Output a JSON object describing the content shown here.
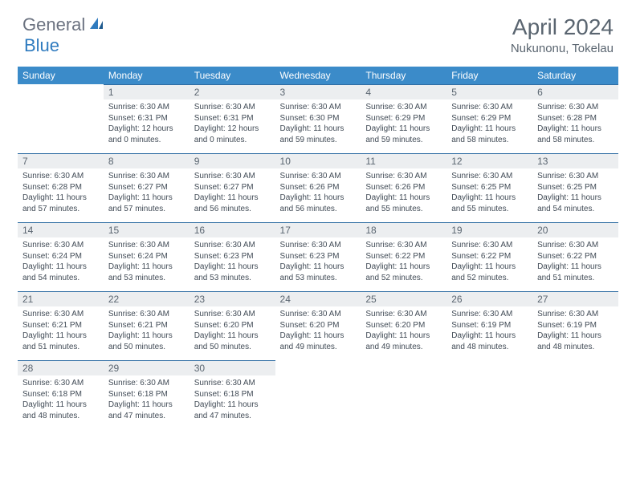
{
  "brand": {
    "text_general": "General",
    "text_blue": "Blue",
    "accent": "#2f7bbf"
  },
  "title": "April 2024",
  "location": "Nukunonu, Tokelau",
  "header_bg": "#3b8bc9",
  "header_text": "#ffffff",
  "daynum_bg": "#eceef0",
  "border_color": "#2f6da3",
  "text_color": "#414b56",
  "weekdays": [
    "Sunday",
    "Monday",
    "Tuesday",
    "Wednesday",
    "Thursday",
    "Friday",
    "Saturday"
  ],
  "first_day_index": 1,
  "days": [
    {
      "n": 1,
      "sunrise": "6:30 AM",
      "sunset": "6:31 PM",
      "daylight": "12 hours and 0 minutes."
    },
    {
      "n": 2,
      "sunrise": "6:30 AM",
      "sunset": "6:31 PM",
      "daylight": "12 hours and 0 minutes."
    },
    {
      "n": 3,
      "sunrise": "6:30 AM",
      "sunset": "6:30 PM",
      "daylight": "11 hours and 59 minutes."
    },
    {
      "n": 4,
      "sunrise": "6:30 AM",
      "sunset": "6:29 PM",
      "daylight": "11 hours and 59 minutes."
    },
    {
      "n": 5,
      "sunrise": "6:30 AM",
      "sunset": "6:29 PM",
      "daylight": "11 hours and 58 minutes."
    },
    {
      "n": 6,
      "sunrise": "6:30 AM",
      "sunset": "6:28 PM",
      "daylight": "11 hours and 58 minutes."
    },
    {
      "n": 7,
      "sunrise": "6:30 AM",
      "sunset": "6:28 PM",
      "daylight": "11 hours and 57 minutes."
    },
    {
      "n": 8,
      "sunrise": "6:30 AM",
      "sunset": "6:27 PM",
      "daylight": "11 hours and 57 minutes."
    },
    {
      "n": 9,
      "sunrise": "6:30 AM",
      "sunset": "6:27 PM",
      "daylight": "11 hours and 56 minutes."
    },
    {
      "n": 10,
      "sunrise": "6:30 AM",
      "sunset": "6:26 PM",
      "daylight": "11 hours and 56 minutes."
    },
    {
      "n": 11,
      "sunrise": "6:30 AM",
      "sunset": "6:26 PM",
      "daylight": "11 hours and 55 minutes."
    },
    {
      "n": 12,
      "sunrise": "6:30 AM",
      "sunset": "6:25 PM",
      "daylight": "11 hours and 55 minutes."
    },
    {
      "n": 13,
      "sunrise": "6:30 AM",
      "sunset": "6:25 PM",
      "daylight": "11 hours and 54 minutes."
    },
    {
      "n": 14,
      "sunrise": "6:30 AM",
      "sunset": "6:24 PM",
      "daylight": "11 hours and 54 minutes."
    },
    {
      "n": 15,
      "sunrise": "6:30 AM",
      "sunset": "6:24 PM",
      "daylight": "11 hours and 53 minutes."
    },
    {
      "n": 16,
      "sunrise": "6:30 AM",
      "sunset": "6:23 PM",
      "daylight": "11 hours and 53 minutes."
    },
    {
      "n": 17,
      "sunrise": "6:30 AM",
      "sunset": "6:23 PM",
      "daylight": "11 hours and 53 minutes."
    },
    {
      "n": 18,
      "sunrise": "6:30 AM",
      "sunset": "6:22 PM",
      "daylight": "11 hours and 52 minutes."
    },
    {
      "n": 19,
      "sunrise": "6:30 AM",
      "sunset": "6:22 PM",
      "daylight": "11 hours and 52 minutes."
    },
    {
      "n": 20,
      "sunrise": "6:30 AM",
      "sunset": "6:22 PM",
      "daylight": "11 hours and 51 minutes."
    },
    {
      "n": 21,
      "sunrise": "6:30 AM",
      "sunset": "6:21 PM",
      "daylight": "11 hours and 51 minutes."
    },
    {
      "n": 22,
      "sunrise": "6:30 AM",
      "sunset": "6:21 PM",
      "daylight": "11 hours and 50 minutes."
    },
    {
      "n": 23,
      "sunrise": "6:30 AM",
      "sunset": "6:20 PM",
      "daylight": "11 hours and 50 minutes."
    },
    {
      "n": 24,
      "sunrise": "6:30 AM",
      "sunset": "6:20 PM",
      "daylight": "11 hours and 49 minutes."
    },
    {
      "n": 25,
      "sunrise": "6:30 AM",
      "sunset": "6:20 PM",
      "daylight": "11 hours and 49 minutes."
    },
    {
      "n": 26,
      "sunrise": "6:30 AM",
      "sunset": "6:19 PM",
      "daylight": "11 hours and 48 minutes."
    },
    {
      "n": 27,
      "sunrise": "6:30 AM",
      "sunset": "6:19 PM",
      "daylight": "11 hours and 48 minutes."
    },
    {
      "n": 28,
      "sunrise": "6:30 AM",
      "sunset": "6:18 PM",
      "daylight": "11 hours and 48 minutes."
    },
    {
      "n": 29,
      "sunrise": "6:30 AM",
      "sunset": "6:18 PM",
      "daylight": "11 hours and 47 minutes."
    },
    {
      "n": 30,
      "sunrise": "6:30 AM",
      "sunset": "6:18 PM",
      "daylight": "11 hours and 47 minutes."
    }
  ]
}
